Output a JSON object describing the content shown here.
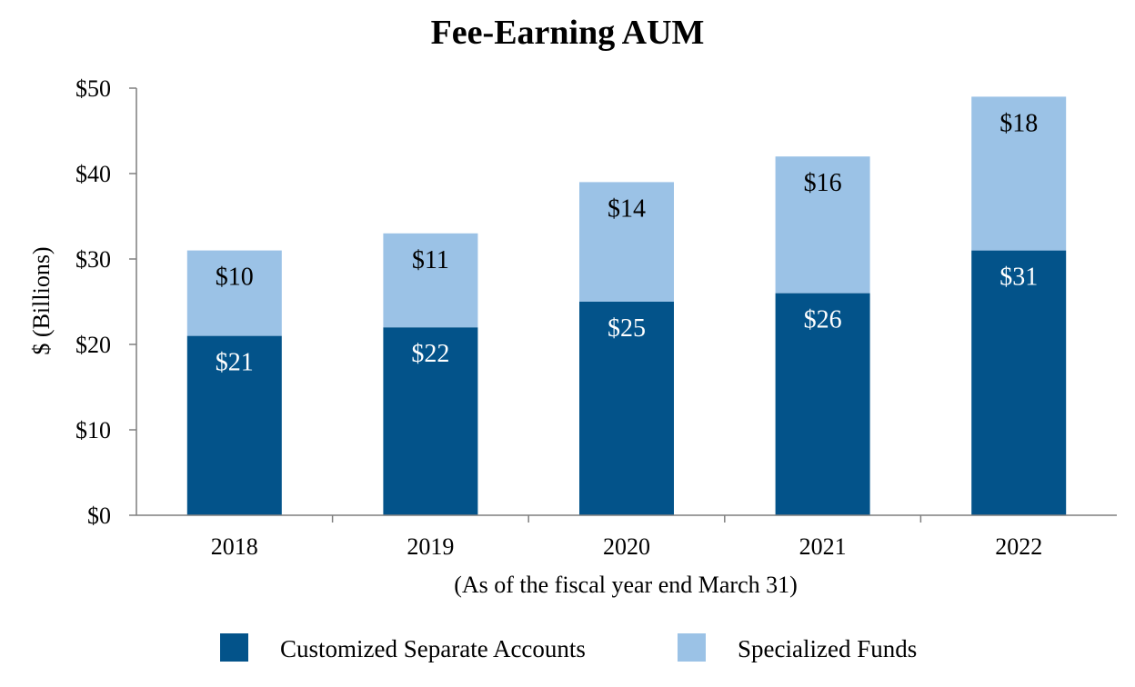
{
  "chart_data": {
    "type": "bar",
    "stacked": true,
    "title": "Fee-Earning AUM",
    "xlabel": "(As of the fiscal year end March 31)",
    "ylabel": "$ (Billions)",
    "categories": [
      "2018",
      "2019",
      "2020",
      "2021",
      "2022"
    ],
    "ylim": [
      0,
      50
    ],
    "yticks": [
      0,
      10,
      20,
      30,
      40,
      50
    ],
    "ytick_labels": [
      "$0",
      "$10",
      "$20",
      "$30",
      "$40",
      "$50"
    ],
    "series": [
      {
        "name": "Customized Separate Accounts",
        "values": [
          21,
          22,
          25,
          26,
          31
        ],
        "value_labels": [
          "$21",
          "$22",
          "$25",
          "$26",
          "$31"
        ],
        "color": "#03538a",
        "label_color": "#ffffff"
      },
      {
        "name": "Specialized Funds",
        "values": [
          10,
          11,
          14,
          16,
          18
        ],
        "value_labels": [
          "$10",
          "$11",
          "$14",
          "$16",
          "$18"
        ],
        "color": "#9bc2e6",
        "label_color": "#000000"
      }
    ],
    "grid": false,
    "legend_position": "bottom-center"
  }
}
